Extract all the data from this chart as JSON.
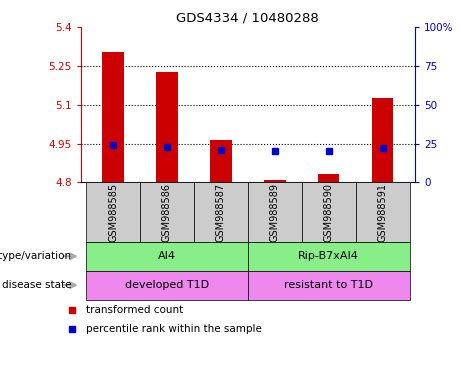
{
  "title": "GDS4334 / 10480288",
  "samples": [
    "GSM988585",
    "GSM988586",
    "GSM988587",
    "GSM988589",
    "GSM988590",
    "GSM988591"
  ],
  "bar_values": [
    5.305,
    5.225,
    4.965,
    4.808,
    4.832,
    5.125
  ],
  "bar_base": 4.8,
  "percentile_values": [
    24,
    23,
    21,
    20,
    20,
    22
  ],
  "ylim_left": [
    4.8,
    5.4
  ],
  "ylim_right": [
    0,
    100
  ],
  "yticks_left": [
    4.8,
    4.95,
    5.1,
    5.25,
    5.4
  ],
  "yticks_right": [
    0,
    25,
    50,
    75,
    100
  ],
  "ytick_labels_left": [
    "4.8",
    "4.95",
    "5.1",
    "5.25",
    "5.4"
  ],
  "ytick_labels_right": [
    "0",
    "25",
    "50",
    "75",
    "100%"
  ],
  "hline_values": [
    4.95,
    5.1,
    5.25
  ],
  "bar_color": "#cc0000",
  "percentile_color": "#0000cc",
  "group1_samples": [
    0,
    1,
    2
  ],
  "group2_samples": [
    3,
    4,
    5
  ],
  "genotype_labels": [
    "AI4",
    "Rip-B7xAI4"
  ],
  "disease_labels": [
    "developed T1D",
    "resistant to T1D"
  ],
  "genotype_color": "#88ee88",
  "disease_color": "#ee88ee",
  "sample_bg_color": "#cccccc",
  "legend_red_label": "transformed count",
  "legend_blue_label": "percentile rank within the sample",
  "row_label_genotype": "genotype/variation",
  "row_label_disease": "disease state",
  "arrow_color": "#aaaaaa"
}
